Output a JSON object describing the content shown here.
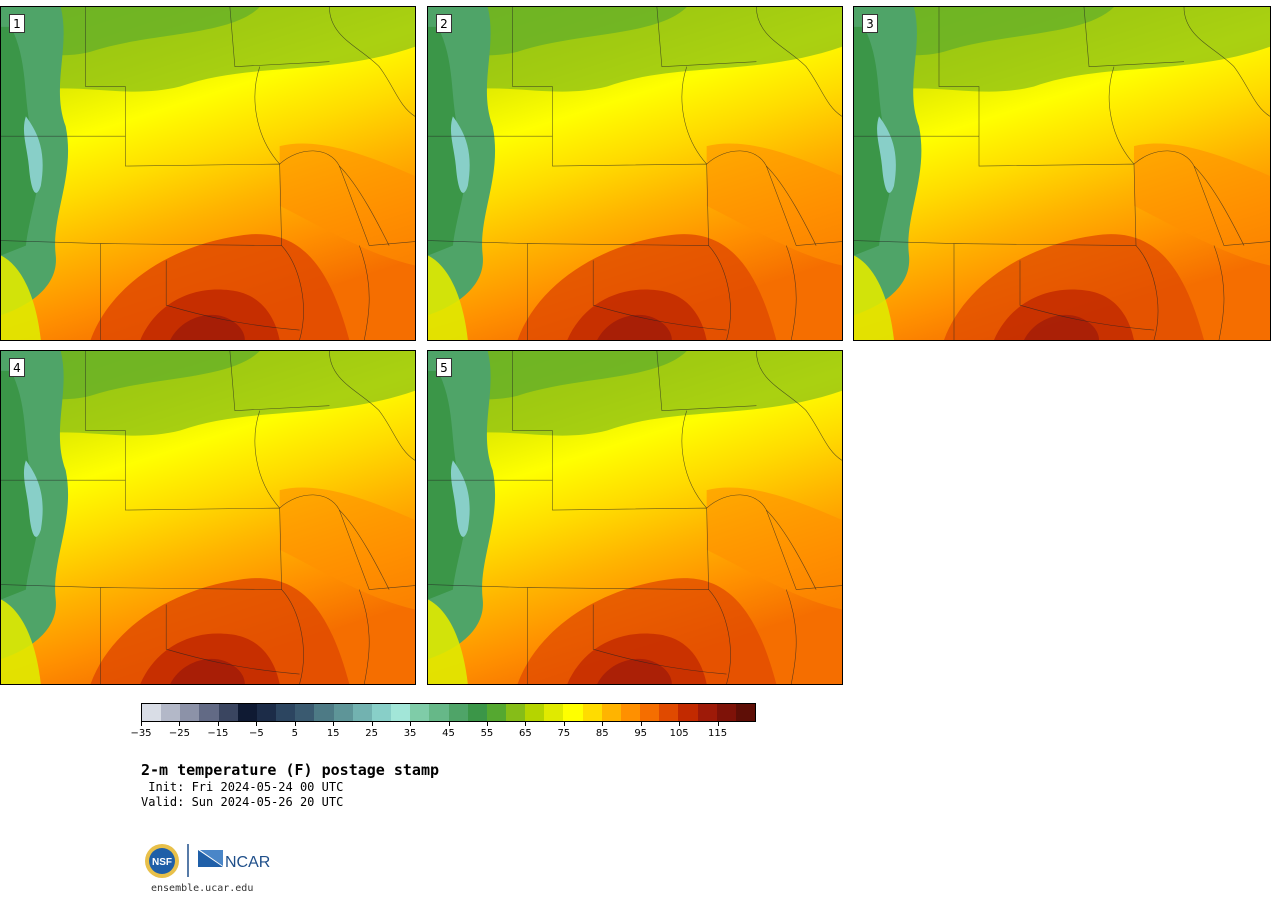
{
  "panels": [
    {
      "label": "1",
      "heat": 1.0
    },
    {
      "label": "2",
      "heat": 0.95
    },
    {
      "label": "3",
      "heat": 0.9
    },
    {
      "label": "4",
      "heat": 0.97
    },
    {
      "label": "5",
      "heat": 0.88
    }
  ],
  "colorbar": {
    "colors": [
      "#d9dde6",
      "#b3b8c8",
      "#8c92a8",
      "#626a85",
      "#3a4560",
      "#0f1a33",
      "#1c2c48",
      "#2c4560",
      "#3a5a70",
      "#4d7a85",
      "#5e9598",
      "#72b2b0",
      "#88cfc8",
      "#a2e6d8",
      "#7fcca8",
      "#66b888",
      "#4fa468",
      "#3b9648",
      "#55a830",
      "#86bd18",
      "#b5d400",
      "#e0ea00",
      "#ffff00",
      "#ffdc00",
      "#ffb400",
      "#ff9000",
      "#f56e00",
      "#e04a00",
      "#c22a00",
      "#9e1a08",
      "#7e1208",
      "#5e0e06"
    ],
    "tick_values": [
      "−35",
      "−25",
      "−15",
      "−5",
      "5",
      "15",
      "25",
      "35",
      "45",
      "55",
      "65",
      "75",
      "85",
      "95",
      "105",
      "115"
    ]
  },
  "text": {
    "title": "2-m temperature (F) postage stamp",
    "init": " Init: Fri 2024-05-24 00 UTC",
    "valid": "Valid: Sun 2024-05-26 20 UTC",
    "website": "ensemble.ucar.edu",
    "logo_nsf": "NSF",
    "logo_ncar": "NCAR"
  }
}
